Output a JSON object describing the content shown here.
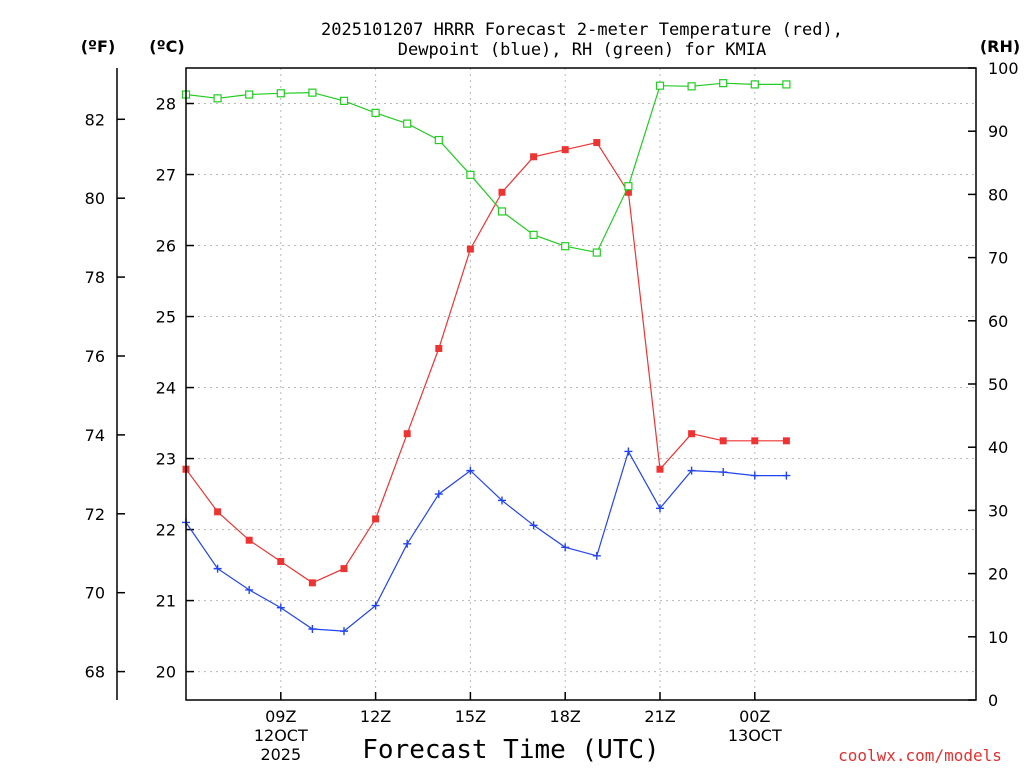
{
  "chart_data": {
    "type": "line",
    "title_line1": "2025101207 HRRR Forecast 2-meter Temperature (red),",
    "title_line2": "Dewpoint (blue), RH (green) for KMIA",
    "xlabel": "Forecast Time (UTC)",
    "credit": "coolwx.com/models",
    "units": {
      "fahrenheit": "(ºF)",
      "celsius": "(ºC)",
      "rh": "(RH)"
    },
    "x_range_hours": [
      6,
      31
    ],
    "x_ticks": [
      {
        "hour": 9,
        "label": "09Z",
        "sub1": "12OCT",
        "sub2": "2025"
      },
      {
        "hour": 12,
        "label": "12Z",
        "sub1": "",
        "sub2": ""
      },
      {
        "hour": 15,
        "label": "15Z",
        "sub1": "",
        "sub2": ""
      },
      {
        "hour": 18,
        "label": "18Z",
        "sub1": "",
        "sub2": ""
      },
      {
        "hour": 21,
        "label": "21Z",
        "sub1": "",
        "sub2": ""
      },
      {
        "hour": 24,
        "label": "00Z",
        "sub1": "13OCT",
        "sub2": ""
      }
    ],
    "celsius_axis": {
      "range": [
        19.6,
        28.5
      ],
      "ticks": [
        20,
        21,
        22,
        23,
        24,
        25,
        26,
        27,
        28
      ]
    },
    "fahrenheit_axis": {
      "ticks": [
        68,
        70,
        72,
        74,
        76,
        78,
        80,
        82
      ]
    },
    "rh_axis": {
      "range": [
        0,
        100
      ],
      "ticks": [
        0,
        10,
        20,
        30,
        40,
        50,
        60,
        70,
        80,
        90,
        100
      ]
    },
    "series": [
      {
        "name": "Temperature",
        "axis": "celsius",
        "color": "#ee3333",
        "marker": "filled-square",
        "x": [
          6,
          7,
          8,
          9,
          10,
          11,
          12,
          13,
          14,
          15,
          16,
          17,
          18,
          19,
          20,
          21,
          22,
          23,
          24,
          25
        ],
        "values": [
          22.85,
          22.25,
          21.85,
          21.55,
          21.25,
          21.45,
          22.15,
          23.35,
          24.55,
          25.95,
          26.75,
          27.25,
          27.35,
          27.45,
          26.75,
          22.85,
          23.35,
          23.25,
          23.25,
          23.25
        ]
      },
      {
        "name": "Dewpoint",
        "axis": "celsius",
        "color": "#2244ee",
        "marker": "plus",
        "x": [
          6,
          7,
          8,
          9,
          10,
          11,
          12,
          13,
          14,
          15,
          16,
          17,
          18,
          19,
          20,
          21,
          22,
          23,
          24,
          25
        ],
        "values": [
          22.1,
          21.45,
          21.15,
          20.9,
          20.6,
          20.57,
          20.93,
          21.8,
          22.5,
          22.83,
          22.41,
          22.06,
          21.75,
          21.63,
          23.1,
          22.3,
          22.83,
          22.81,
          22.76,
          22.76
        ]
      },
      {
        "name": "RH",
        "axis": "rh",
        "color": "#22cc22",
        "marker": "open-square",
        "x": [
          6,
          7,
          8,
          9,
          10,
          11,
          12,
          13,
          14,
          15,
          16,
          17,
          18,
          19,
          20,
          21,
          22,
          23,
          24,
          25
        ],
        "values": [
          95.8,
          95.2,
          95.8,
          96.0,
          96.1,
          94.8,
          92.9,
          91.2,
          88.6,
          83.1,
          77.3,
          73.6,
          71.8,
          70.8,
          81.3,
          97.2,
          97.1,
          97.6,
          97.4,
          97.4
        ]
      }
    ]
  }
}
